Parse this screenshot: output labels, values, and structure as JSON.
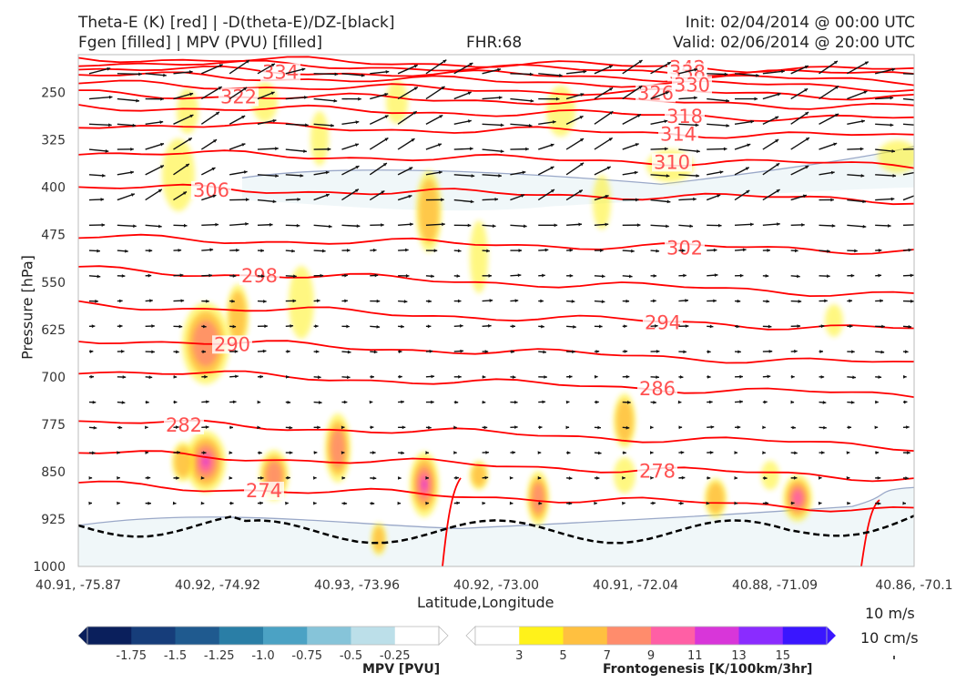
{
  "header": {
    "title_line1": "Theta-E (K) [red] | -D(theta-E)/DZ-[black]",
    "title_line2": "Fgen [filled] | MPV (PVU) [filled]",
    "fhr": "FHR:68",
    "init": "Init: 02/04/2014 @ 00:00 UTC",
    "valid": "Valid: 02/06/2014 @ 20:00 UTC"
  },
  "chart_data": {
    "type": "cross-section",
    "ylabel": "Pressure [hPa]",
    "xlabel": "Latitude,Longitude",
    "y_ticks": [
      250,
      325,
      400,
      475,
      550,
      625,
      700,
      775,
      850,
      925,
      1000
    ],
    "ylim": [
      1000,
      190
    ],
    "x_ticks": [
      "40.91, -75.87",
      "40.92, -74.92",
      "40.93, -73.96",
      "40.92, -73.00",
      "40.91, -72.04",
      "40.88, -71.09",
      "40.86, -70.1"
    ],
    "theta_e_contours": [
      {
        "label": "342",
        "start": 195
      },
      {
        "label": "338",
        "start": 202
      },
      {
        "label": "334",
        "start": 212
      },
      {
        "label": "330",
        "start": 222
      },
      {
        "label": "326",
        "start": 236
      },
      {
        "label": "322",
        "start": 252
      },
      {
        "label": "318",
        "start": 272
      },
      {
        "label": "314",
        "start": 300
      },
      {
        "label": "310",
        "start": 345
      },
      {
        "label": "306",
        "start": 400
      },
      {
        "label": "302",
        "start": 480
      },
      {
        "label": "298",
        "start": 530
      },
      {
        "label": "294",
        "start": 585
      },
      {
        "label": "290",
        "start": 640
      },
      {
        "label": "286",
        "start": 690
      },
      {
        "label": "282",
        "start": 770
      },
      {
        "label": "278",
        "start": 820
      },
      {
        "label": "274",
        "start": 870
      }
    ],
    "mpv_colorbar": {
      "label": "MPV [PVU]",
      "ticks": [
        "-1.75",
        "-1.5",
        "-1.25",
        "-1.0",
        "-0.75",
        "-0.5",
        "-0.25"
      ],
      "colors": [
        "#0a1f5c",
        "#163d7a",
        "#1f5a8f",
        "#2a7ea6",
        "#4ba2c4",
        "#86c4d9",
        "#bcdfe9",
        "#ffffff"
      ]
    },
    "fgen_colorbar": {
      "label": "Frontogenesis [K/100km/3hr]",
      "ticks": [
        "3",
        "5",
        "7",
        "9",
        "11",
        "13",
        "15"
      ],
      "colors": [
        "#ffffff",
        "#fff21a",
        "#ffc040",
        "#ff8c6c",
        "#ff5fa5",
        "#d836d9",
        "#8a2cff",
        "#3a16ff"
      ]
    },
    "reference_vector": {
      "label_1": "10 m/s",
      "label_2": "10 cm/s"
    },
    "colors": {
      "theta_e": "#ff0000",
      "label": "#ff5050",
      "vectors": "#111111",
      "mpv_contour": "#9aa8c8",
      "boundary": "#000000"
    }
  }
}
